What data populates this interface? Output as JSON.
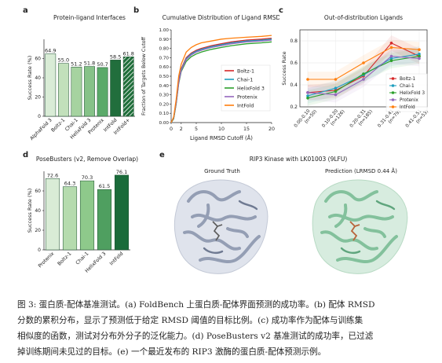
{
  "panels": {
    "a": "a",
    "b": "b",
    "c": "c",
    "d": "d",
    "e": "e"
  },
  "chart_data": [
    {
      "id": "a",
      "type": "bar",
      "title": "Protein-ligand Interfaces",
      "ylabel": "Success Rate (%)",
      "ylim": [
        0,
        80
      ],
      "yticks": [
        "0",
        "20",
        "40",
        "60"
      ],
      "categories": [
        "AlphaFold 3",
        "Boltz-1",
        "Chai-1",
        "HelixFold 3",
        "Protenix",
        "IntFold",
        "IntFold+"
      ],
      "values": [
        64.9,
        55.0,
        51.2,
        51.8,
        50.7,
        58.5,
        61.8
      ],
      "value_labels": [
        "64.9",
        "55.0",
        "51.2",
        "51.8",
        "50.7",
        "58.5",
        "61.8"
      ],
      "colors": [
        "#d9ecd6",
        "#c2e0bb",
        "#a6d3a0",
        "#86c288",
        "#5aaa69",
        "#216e3c",
        "#1f6e3a"
      ]
    },
    {
      "id": "b",
      "type": "line",
      "title": "Cumulative Distribution of Ligand RMSD",
      "xlabel": "Ligand RMSD Cutoff (Å)",
      "ylabel": "Fraction of Targets Below Cutoff",
      "xlim": [
        0,
        20
      ],
      "ylim": [
        0,
        1.0
      ],
      "xticks": [
        0,
        2,
        5,
        10,
        15,
        20
      ],
      "yticks": [
        0.0,
        0.1,
        0.2,
        0.3,
        0.4,
        0.5,
        0.6,
        0.7,
        0.8,
        0.9,
        1.0
      ],
      "ytick_labels": [
        "0.00",
        "0.10",
        "0.20",
        "0.30",
        "0.40",
        "0.50",
        "0.60",
        "0.70",
        "0.80",
        "0.90",
        "1.00"
      ],
      "legend": "right",
      "series": [
        {
          "name": "Boltz-1",
          "color": "#d62728",
          "x": [
            0,
            0.5,
            1,
            1.5,
            2,
            3,
            4,
            5,
            6,
            8,
            10,
            12,
            15,
            18,
            20
          ],
          "y": [
            0,
            0.05,
            0.22,
            0.45,
            0.58,
            0.7,
            0.75,
            0.78,
            0.8,
            0.83,
            0.85,
            0.87,
            0.89,
            0.9,
            0.91
          ]
        },
        {
          "name": "Chai-1",
          "color": "#1f9fbf",
          "x": [
            0,
            0.5,
            1,
            1.5,
            2,
            3,
            4,
            5,
            6,
            8,
            10,
            12,
            15,
            18,
            20
          ],
          "y": [
            0,
            0.05,
            0.21,
            0.44,
            0.57,
            0.69,
            0.74,
            0.77,
            0.79,
            0.82,
            0.84,
            0.86,
            0.88,
            0.89,
            0.9
          ]
        },
        {
          "name": "HelixFold 3",
          "color": "#2ca02c",
          "x": [
            0,
            0.5,
            1,
            1.5,
            2,
            3,
            4,
            5,
            6,
            8,
            10,
            12,
            15,
            18,
            20
          ],
          "y": [
            0,
            0.04,
            0.2,
            0.42,
            0.55,
            0.66,
            0.71,
            0.74,
            0.76,
            0.79,
            0.81,
            0.83,
            0.85,
            0.86,
            0.87
          ]
        },
        {
          "name": "Protenix",
          "color": "#9467bd",
          "x": [
            0,
            0.5,
            1,
            1.5,
            2,
            3,
            4,
            5,
            6,
            8,
            10,
            12,
            15,
            18,
            20
          ],
          "y": [
            0,
            0.05,
            0.21,
            0.43,
            0.56,
            0.68,
            0.73,
            0.76,
            0.78,
            0.81,
            0.83,
            0.85,
            0.87,
            0.88,
            0.89
          ]
        },
        {
          "name": "IntFold",
          "color": "#ff7f0e",
          "x": [
            0,
            0.5,
            1,
            1.5,
            2,
            3,
            4,
            5,
            6,
            8,
            10,
            12,
            15,
            18,
            20
          ],
          "y": [
            0,
            0.06,
            0.25,
            0.5,
            0.63,
            0.76,
            0.81,
            0.84,
            0.86,
            0.88,
            0.9,
            0.91,
            0.92,
            0.93,
            0.94
          ]
        }
      ]
    },
    {
      "id": "c",
      "type": "line",
      "title": "Out-of-distribution Ligands",
      "ylabel": "Success Rate",
      "ylim": [
        0.2,
        0.9
      ],
      "yticks": [
        0.2,
        0.4,
        0.6,
        0.8
      ],
      "ytick_labels": [
        "0.2",
        "0.4",
        "0.6",
        "0.8"
      ],
      "categories": [
        "0.00-0.10\n(n=50)",
        "0.10-0.20\n(n=126)",
        "0.20-0.31\n(n=185)",
        "0.31-0.41\n(n=79)",
        "0.41-0.51\n(n=53)"
      ],
      "category_lines": [
        [
          "0.00-0.10",
          "(n=50)"
        ],
        [
          "0.10-0.20",
          "(n=126)"
        ],
        [
          "0.20-0.31",
          "(n=185)"
        ],
        [
          "0.31-0.41",
          "(n=79)"
        ],
        [
          "0.41-0.51",
          "(n=53)"
        ]
      ],
      "legend": "right",
      "series": [
        {
          "name": "Boltz-1",
          "color": "#d62728",
          "marker": "circle",
          "values": [
            0.33,
            0.35,
            0.48,
            0.78,
            0.66
          ]
        },
        {
          "name": "Chai-1",
          "color": "#1f9fbf",
          "marker": "circle",
          "values": [
            0.3,
            0.37,
            0.49,
            0.64,
            0.68
          ]
        },
        {
          "name": "HelixFold 3",
          "color": "#2ca02c",
          "marker": "circle",
          "values": [
            0.28,
            0.34,
            0.5,
            0.62,
            0.66
          ]
        },
        {
          "name": "Protenix",
          "color": "#9467bd",
          "marker": "circle",
          "values": [
            0.33,
            0.31,
            0.45,
            0.66,
            0.64
          ]
        },
        {
          "name": "IntFold",
          "color": "#ff7f0e",
          "marker": "circle",
          "values": [
            0.45,
            0.45,
            0.6,
            0.74,
            0.72
          ]
        }
      ]
    },
    {
      "id": "d",
      "type": "bar",
      "title": "PoseBusters (v2, Remove Overlap)",
      "ylabel": "Success Rate (%)",
      "ylim": [
        0,
        80
      ],
      "yticks": [
        "0",
        "20",
        "40",
        "60"
      ],
      "categories": [
        "Protenix",
        "Boltz-1",
        "Chai-1",
        "HelixFold 3",
        "IntFold"
      ],
      "values": [
        72.6,
        64.3,
        70.3,
        61.5,
        76.1
      ],
      "value_labels": [
        "72.6",
        "64.3",
        "70.3",
        "61.5",
        "76.1"
      ],
      "colors": [
        "#d9ecd6",
        "#b5dbae",
        "#8ec98b",
        "#4f9f60",
        "#1a6b3a"
      ]
    }
  ],
  "panel_e": {
    "title": "RIP3 Kinase with LK01003 (9LFU)",
    "left_label": "Ground Truth",
    "right_label": "Prediction (LRMSD 0.44 Å)"
  },
  "caption": {
    "line1": "图 3: 蛋白质-配体基准测试。(a) FoldBench 上蛋白质-配体界面预测的成功率。(b) 配体 RMSD",
    "line2": "分数的累积分布，显示了预测低于给定 RMSD 阈值的目标比例。(c) 成功率作为配体与训练集",
    "line3": "相似度的函数，测试对分布外分子的泛化能力。(d) PoseBusters v2 基准测试的成功率，已过滤",
    "line4": "掉训练期间未见过的目标。(e) 一个最近发布的 RIP3 激酶的蛋白质-配体预测示例。"
  },
  "colors": {
    "gt_protein": "#9aa6bd",
    "pred_protein": "#8dc1a3",
    "gt_ligand": "#5a5a5a",
    "pred_ligand": "#b8643a"
  }
}
